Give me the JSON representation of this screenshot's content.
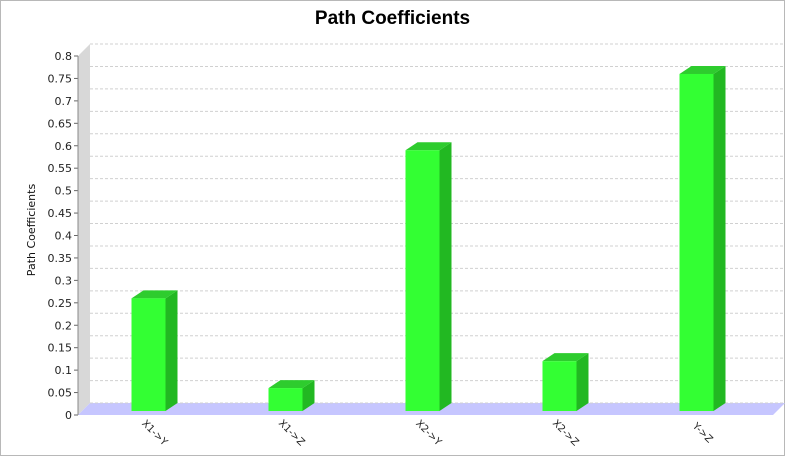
{
  "chart_data": {
    "type": "bar",
    "title": "Path Coefficients",
    "xlabel": "",
    "ylabel": "Path Coefficients",
    "categories": [
      "X1->Y",
      "X1->Z",
      "X2->Y",
      "X2->Z",
      "Y->Z"
    ],
    "values": [
      0.26,
      0.06,
      0.59,
      0.12,
      0.76
    ],
    "ylim": [
      0,
      0.8
    ],
    "yticks": [
      "0",
      "0.05",
      "0.1",
      "0.15",
      "0.2",
      "0.25",
      "0.3",
      "0.35",
      "0.4",
      "0.45",
      "0.5",
      "0.55",
      "0.6",
      "0.65",
      "0.7",
      "0.75",
      "0.8"
    ],
    "grid": true,
    "legend": "none",
    "style": "3d",
    "colors": {
      "bar_front": "#33ff33",
      "bar_side": "#22b822",
      "bar_top": "#2ecc2e",
      "floor": "#c6c6ff",
      "back_wall": "#d8d8d8",
      "grid": "#d0d0d0"
    }
  }
}
